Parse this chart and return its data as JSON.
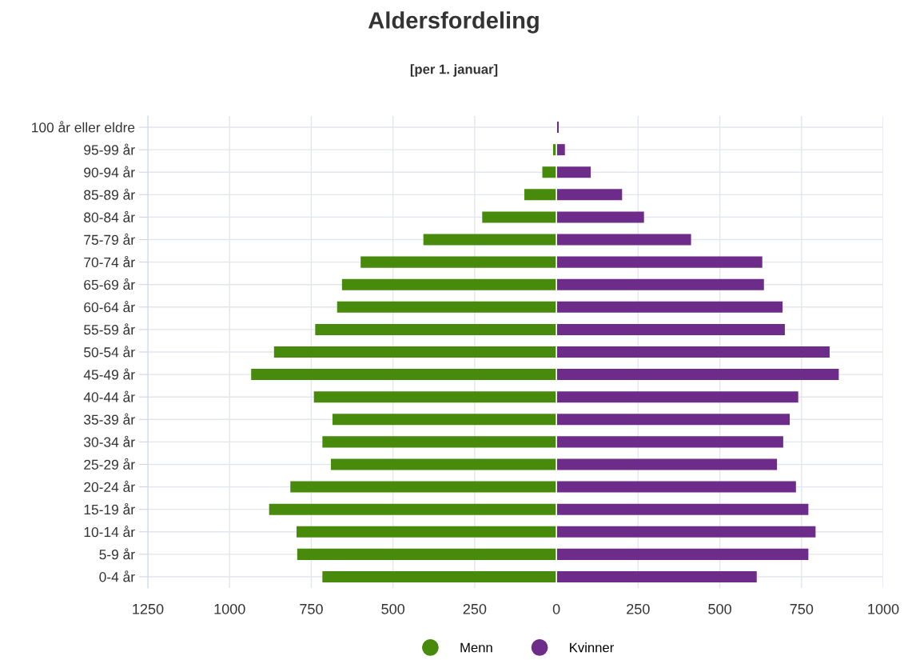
{
  "chart_data": {
    "type": "bar",
    "orientation": "horizontal",
    "stacked": true,
    "title": "Aldersfordeling",
    "subtitle": "[per 1. januar]",
    "categories": [
      "100 år eller eldre",
      "95-99 år",
      "90-94 år",
      "85-89 år",
      "80-84 år",
      "75-79 år",
      "70-74 år",
      "65-69 år",
      "60-64 år",
      "55-59 år",
      "50-54 år",
      "45-49 år",
      "40-44 år",
      "35-39 år",
      "30-34 år",
      "25-29 år",
      "20-24 år",
      "15-19 år",
      "10-14 år",
      "5-9 år",
      "0-4 år"
    ],
    "series": [
      {
        "name": "Menn",
        "color": "#478a0c",
        "values": [
          0,
          -10,
          -43,
          -98,
          -227,
          -407,
          -599,
          -656,
          -671,
          -738,
          -864,
          -934,
          -742,
          -685,
          -716,
          -690,
          -814,
          -879,
          -795,
          -793,
          -716
        ]
      },
      {
        "name": "Kvinner",
        "color": "#6e2c8a",
        "values": [
          7,
          26,
          105,
          201,
          268,
          412,
          630,
          635,
          692,
          699,
          836,
          864,
          740,
          714,
          694,
          675,
          733,
          771,
          793,
          771,
          613
        ]
      }
    ],
    "xlim": [
      -1250,
      1000
    ],
    "xticks": [
      {
        "value": -1250,
        "label": "1250"
      },
      {
        "value": -1000,
        "label": "1000"
      },
      {
        "value": -750,
        "label": "750"
      },
      {
        "value": -500,
        "label": "500"
      },
      {
        "value": -250,
        "label": "250"
      },
      0,
      250,
      500,
      750,
      1000
    ],
    "grid": true,
    "legend": "bottom"
  }
}
